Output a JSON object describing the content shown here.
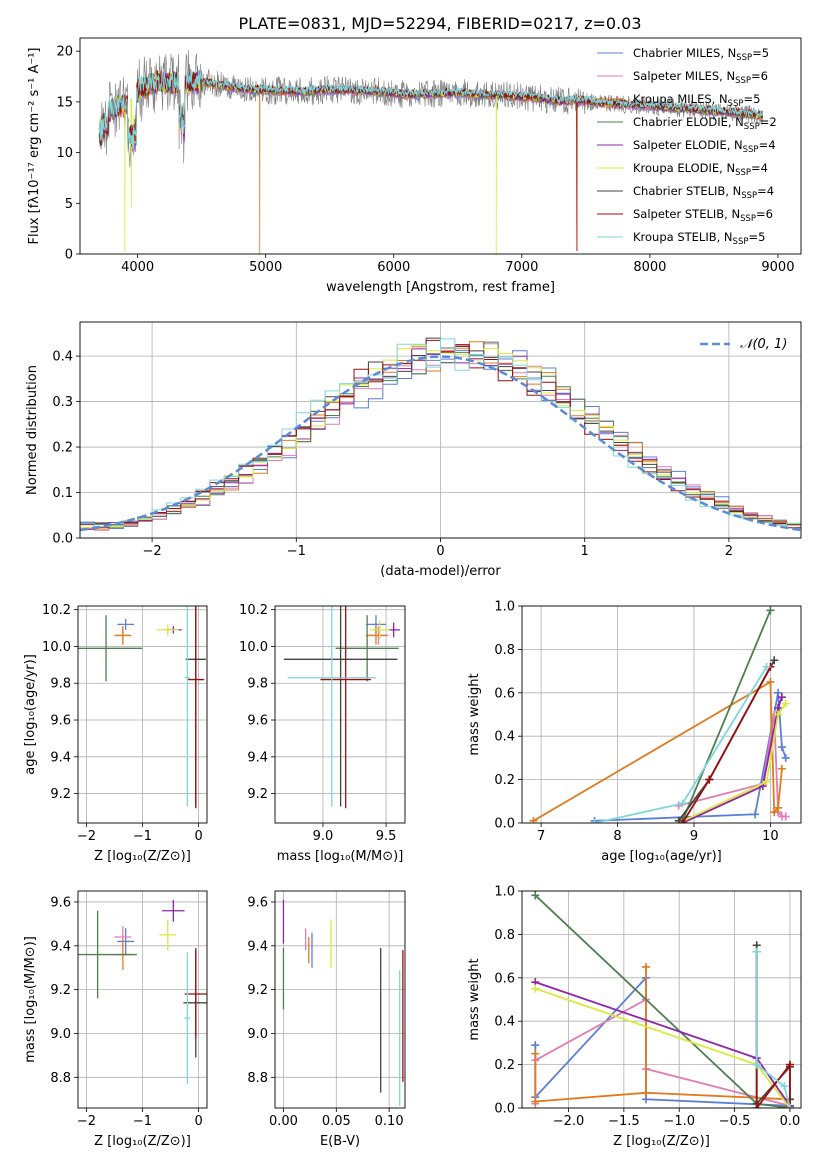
{
  "figure": {
    "title": "PLATE=0831, MJD=52294, FIBERID=0217, z=0.03"
  },
  "colors": {
    "Chabrier MILES": "#5b7fd6",
    "Salpeter MILES": "#e27cb4",
    "Kroupa MILES": "#e07b20",
    "Chabrier ELODIE": "#4f7f4f",
    "Salpeter ELODIE": "#8e24aa",
    "Kroupa ELODIE": "#d8ea3a",
    "Chabrier STELIB": "#444444",
    "Salpeter STELIB": "#9b0e0e",
    "Kroupa STELIB": "#7fd6dc"
  },
  "chart_data": [
    {
      "id": "spectrum",
      "type": "line",
      "title": "PLATE=0831, MJD=52294, FIBERID=0217, z=0.03",
      "xlabel": "wavelength [Angstrom, rest frame]",
      "ylabel": "Flux [fλ10⁻¹⁷ erg cm⁻² s⁻¹ A⁻¹]",
      "xlim": [
        3550,
        9180
      ],
      "ylim": [
        0,
        21.3
      ],
      "xticks": [
        4000,
        5000,
        6000,
        7000,
        8000,
        9000
      ],
      "yticks": [
        0,
        5,
        10,
        15,
        20
      ],
      "grid": false,
      "legend_position": "right",
      "legend": [
        {
          "label": "Chabrier MILES, N",
          "sub": "SSP",
          "tail": "=5",
          "color_key": "Chabrier MILES"
        },
        {
          "label": "Salpeter MILES, N",
          "sub": "SSP",
          "tail": "=6",
          "color_key": "Salpeter MILES"
        },
        {
          "label": "Kroupa MILES, N",
          "sub": "SSP",
          "tail": "=5",
          "color_key": "Kroupa MILES"
        },
        {
          "label": "Chabrier ELODIE, N",
          "sub": "SSP",
          "tail": "=2",
          "color_key": "Chabrier ELODIE"
        },
        {
          "label": "Salpeter ELODIE, N",
          "sub": "SSP",
          "tail": "=4",
          "color_key": "Salpeter ELODIE"
        },
        {
          "label": "Kroupa ELODIE, N",
          "sub": "SSP",
          "tail": "=4",
          "color_key": "Kroupa ELODIE"
        },
        {
          "label": "Chabrier STELIB, N",
          "sub": "SSP",
          "tail": "=4",
          "color_key": "Chabrier STELIB"
        },
        {
          "label": "Salpeter STELIB, N",
          "sub": "SSP",
          "tail": "=6",
          "color_key": "Salpeter STELIB"
        },
        {
          "label": "Kroupa STELIB, N",
          "sub": "SSP",
          "tail": "=5",
          "color_key": "Kroupa STELIB"
        }
      ],
      "continuum": {
        "wavelength": [
          3700,
          3800,
          3900,
          4000,
          4100,
          4200,
          4300,
          4400,
          4500,
          4700,
          4900,
          5100,
          5300,
          5500,
          5700,
          5900,
          6100,
          6300,
          6500,
          6700,
          6900,
          7100,
          7300,
          7500,
          7700,
          8000,
          8300,
          8600,
          8900
        ],
        "flux": [
          13.0,
          14.3,
          14.7,
          16.0,
          16.8,
          17.0,
          16.8,
          16.9,
          17.0,
          16.5,
          16.2,
          16.1,
          16.0,
          16.2,
          16.1,
          16.0,
          15.7,
          15.8,
          15.9,
          15.7,
          15.6,
          15.4,
          15.1,
          15.1,
          14.8,
          14.6,
          14.3,
          14.0,
          13.6
        ]
      },
      "features": [
        {
          "wavelength": 3900,
          "series": "Kroupa ELODIE",
          "depth_to": 0.2
        },
        {
          "wavelength": 3950,
          "series": "Kroupa ELODIE",
          "depth_to": 4.5
        },
        {
          "wavelength": 4953,
          "series": "Kroupa MILES",
          "depth_to": 0.0
        },
        {
          "wavelength": 6800,
          "series": "Kroupa ELODIE",
          "depth_to": 0.0
        },
        {
          "wavelength": 7430,
          "series": "Salpeter STELIB",
          "depth_to": 0.3
        },
        {
          "wavelength": 7430,
          "series": "Kroupa MILES",
          "depth_to": 0.3
        }
      ]
    },
    {
      "id": "residuals",
      "type": "histogram",
      "xlabel": "(data-model)/error",
      "ylabel": "Normed distribution",
      "xlim": [
        -2.5,
        2.5
      ],
      "ylim": [
        0,
        0.475
      ],
      "xticks": [
        -2,
        -1,
        0,
        1,
        2
      ],
      "yticks": [
        0.0,
        0.1,
        0.2,
        0.3,
        0.4
      ],
      "grid": true,
      "legend_position": "top-right",
      "reference_curve": {
        "label": "𝒩(0, 1)",
        "mean": 0,
        "sigma": 1
      },
      "bin_edges_start": -2.5,
      "bin_width": 0.1
    },
    {
      "id": "age_vs_Z",
      "type": "errorbar",
      "xlabel": "Z [log₁₀(Z/Z⊙)]",
      "ylabel": "age  [log₁₀(age/yr)]",
      "xlim": [
        -2.15,
        0.15
      ],
      "ylim": [
        9.04,
        10.22
      ],
      "xticks": [
        -2,
        -1,
        0
      ],
      "yticks": [
        9.2,
        9.4,
        9.6,
        9.8,
        10.0,
        10.2
      ],
      "grid": true,
      "points": [
        {
          "series": "Chabrier MILES",
          "x": -1.3,
          "xerr": 0.15,
          "y": 10.12,
          "yerr": 0.03
        },
        {
          "series": "Salpeter MILES",
          "x": -1.35,
          "xerr": 0.12,
          "y": 10.06,
          "yerr": 0.05
        },
        {
          "series": "Kroupa MILES",
          "x": -1.35,
          "xerr": 0.15,
          "y": 10.06,
          "yerr": 0.05
        },
        {
          "series": "Chabrier ELODIE",
          "x": -1.65,
          "xerr": 0.65,
          "y": 9.99,
          "yerr": 0.18
        },
        {
          "series": "Salpeter ELODIE",
          "x": -0.45,
          "xerr": 0.15,
          "y": 10.09,
          "yerr": 0.02
        },
        {
          "series": "Kroupa ELODIE",
          "x": -0.55,
          "xerr": 0.2,
          "y": 10.09,
          "yerr": 0.03
        },
        {
          "series": "Chabrier STELIB",
          "x": -0.05,
          "xerr": 0.18,
          "y": 9.93,
          "yerr": 0.8
        },
        {
          "series": "Salpeter STELIB",
          "x": -0.05,
          "xerr": 0.15,
          "y": 9.82,
          "yerr": 0.7
        },
        {
          "series": "Kroupa STELIB",
          "x": -0.2,
          "xerr": 0.05,
          "y": 9.83,
          "yerr": 0.7
        }
      ]
    },
    {
      "id": "age_vs_mass",
      "type": "errorbar",
      "xlabel": "mass [log₁₀(M/M⊙)]",
      "ylabel": "",
      "xlim": [
        8.62,
        9.65
      ],
      "ylim": [
        9.04,
        10.22
      ],
      "xticks": [
        9.0,
        9.5
      ],
      "yticks": [
        9.2,
        9.4,
        9.6,
        9.8,
        10.0,
        10.2
      ],
      "grid": true,
      "points": [
        {
          "series": "Chabrier MILES",
          "x": 9.42,
          "xerr": 0.08,
          "y": 10.12,
          "yerr": 0.05
        },
        {
          "series": "Salpeter MILES",
          "x": 9.44,
          "xerr": 0.08,
          "y": 10.06,
          "yerr": 0.05
        },
        {
          "series": "Kroupa MILES",
          "x": 9.42,
          "xerr": 0.08,
          "y": 10.06,
          "yerr": 0.05
        },
        {
          "series": "Chabrier ELODIE",
          "x": 9.35,
          "xerr": 0.25,
          "y": 9.99,
          "yerr": 0.18
        },
        {
          "series": "Salpeter ELODIE",
          "x": 9.56,
          "xerr": 0.05,
          "y": 10.09,
          "yerr": 0.04
        },
        {
          "series": "Kroupa ELODIE",
          "x": 9.45,
          "xerr": 0.08,
          "y": 10.09,
          "yerr": 0.05
        },
        {
          "series": "Chabrier STELIB",
          "x": 9.14,
          "xerr": 0.45,
          "y": 9.93,
          "yerr": 0.8
        },
        {
          "series": "Salpeter STELIB",
          "x": 9.18,
          "xerr": 0.2,
          "y": 9.82,
          "yerr": 0.7
        },
        {
          "series": "Kroupa STELIB",
          "x": 9.07,
          "xerr": 0.35,
          "y": 9.83,
          "yerr": 0.7
        }
      ]
    },
    {
      "id": "weight_vs_age",
      "type": "line",
      "xlabel": "age  [log₁₀(age/yr)]",
      "ylabel": "mass weight",
      "xlim": [
        6.75,
        10.4
      ],
      "ylim": [
        0,
        1
      ],
      "xticks": [
        7,
        8,
        9,
        10
      ],
      "yticks": [
        0.0,
        0.2,
        0.4,
        0.6,
        0.8,
        1.0
      ],
      "grid": true,
      "series": [
        {
          "series": "Chabrier MILES",
          "x": [
            7.7,
            9.8,
            10.1,
            10.15,
            10.2
          ],
          "y": [
            0.01,
            0.04,
            0.6,
            0.35,
            0.3
          ]
        },
        {
          "series": "Salpeter MILES",
          "x": [
            8.8,
            9.9,
            10.05,
            10.1,
            10.15,
            10.2
          ],
          "y": [
            0.08,
            0.18,
            0.5,
            0.05,
            0.03,
            0.03
          ]
        },
        {
          "series": "Kroupa MILES",
          "x": [
            6.9,
            10.0,
            10.05,
            10.1,
            10.15
          ],
          "y": [
            0.01,
            0.65,
            0.05,
            0.07,
            0.25
          ]
        },
        {
          "series": "Chabrier ELODIE",
          "x": [
            8.85,
            10.0
          ],
          "y": [
            0.01,
            0.98
          ]
        },
        {
          "series": "Salpeter ELODIE",
          "x": [
            8.85,
            9.9,
            10.1,
            10.15
          ],
          "y": [
            0.0,
            0.17,
            0.53,
            0.58
          ]
        },
        {
          "series": "Kroupa ELODIE",
          "x": [
            8.8,
            9.95,
            10.1,
            10.2
          ],
          "y": [
            0.0,
            0.19,
            0.5,
            0.55
          ]
        },
        {
          "series": "Chabrier STELIB",
          "x": [
            8.8,
            9.2,
            10.05
          ],
          "y": [
            0.01,
            0.2,
            0.75
          ]
        },
        {
          "series": "Salpeter STELIB",
          "x": [
            8.85,
            9.2,
            10.0
          ],
          "y": [
            0.0,
            0.2,
            0.72
          ]
        },
        {
          "series": "Kroupa STELIB",
          "x": [
            7.7,
            8.85,
            9.95
          ],
          "y": [
            0.0,
            0.09,
            0.72
          ]
        }
      ]
    },
    {
      "id": "mass_vs_Z",
      "type": "errorbar",
      "xlabel": "Z [log₁₀(Z/Z⊙)]",
      "ylabel": "mass [log₁₀(M/M⊙)]",
      "xlim": [
        -2.15,
        0.15
      ],
      "ylim": [
        8.66,
        9.65
      ],
      "xticks": [
        -2,
        -1,
        0
      ],
      "yticks": [
        8.8,
        9.0,
        9.2,
        9.4,
        9.6
      ],
      "grid": true,
      "points": [
        {
          "series": "Chabrier MILES",
          "x": -1.3,
          "xerr": 0.15,
          "y": 9.42,
          "yerr": 0.06
        },
        {
          "series": "Salpeter MILES",
          "x": -1.35,
          "xerr": 0.15,
          "y": 9.44,
          "yerr": 0.05
        },
        {
          "series": "Kroupa MILES",
          "x": -1.35,
          "xerr": 0.15,
          "y": 9.36,
          "yerr": 0.07
        },
        {
          "series": "Chabrier ELODIE",
          "x": -1.8,
          "xerr": 0.7,
          "y": 9.36,
          "yerr": 0.2
        },
        {
          "series": "Salpeter ELODIE",
          "x": -0.45,
          "xerr": 0.2,
          "y": 9.56,
          "yerr": 0.05
        },
        {
          "series": "Kroupa ELODIE",
          "x": -0.55,
          "xerr": 0.15,
          "y": 9.45,
          "yerr": 0.07
        },
        {
          "series": "Chabrier STELIB",
          "x": -0.05,
          "xerr": 0.22,
          "y": 9.14,
          "yerr": 0.25
        },
        {
          "series": "Salpeter STELIB",
          "x": -0.05,
          "xerr": 0.2,
          "y": 9.18,
          "yerr": 0.2
        },
        {
          "series": "Kroupa STELIB",
          "x": -0.2,
          "xerr": 0.05,
          "y": 9.07,
          "yerr": 0.3
        }
      ]
    },
    {
      "id": "mass_vs_ebv",
      "type": "errorbar",
      "xlabel": "E(B-V)",
      "ylabel": "",
      "xlim": [
        -0.008,
        0.115
      ],
      "ylim": [
        8.66,
        9.65
      ],
      "xticks": [
        0.0,
        0.05,
        0.1
      ],
      "yticks": [
        8.8,
        9.0,
        9.2,
        9.4,
        9.6
      ],
      "grid": true,
      "points": [
        {
          "series": "Chabrier MILES",
          "x": 0.027,
          "xerr": 0.0,
          "y": 9.38,
          "yerr": 0.08
        },
        {
          "series": "Salpeter MILES",
          "x": 0.021,
          "xerr": 0.0,
          "y": 9.43,
          "yerr": 0.05
        },
        {
          "series": "Kroupa MILES",
          "x": 0.024,
          "xerr": 0.0,
          "y": 9.38,
          "yerr": 0.06
        },
        {
          "series": "Chabrier ELODIE",
          "x": 0.0,
          "xerr": 0.0,
          "y": 9.25,
          "yerr": 0.14
        },
        {
          "series": "Salpeter ELODIE",
          "x": 0.0,
          "xerr": 0.0,
          "y": 9.51,
          "yerr": 0.1
        },
        {
          "series": "Kroupa ELODIE",
          "x": 0.045,
          "xerr": 0.0,
          "y": 9.41,
          "yerr": 0.11
        },
        {
          "series": "Chabrier STELIB",
          "x": 0.092,
          "xerr": 0.0,
          "y": 9.06,
          "yerr": 0.33
        },
        {
          "series": "Salpeter STELIB",
          "x": 0.113,
          "xerr": 0.0,
          "y": 9.08,
          "yerr": 0.3
        },
        {
          "series": "Kroupa STELIB",
          "x": 0.11,
          "xerr": 0.0,
          "y": 8.98,
          "yerr": 0.31
        }
      ]
    },
    {
      "id": "weight_vs_Z",
      "type": "line",
      "xlabel": "Z [log₁₀(Z/Z⊙)]",
      "ylabel": "mass weight",
      "xlim": [
        -2.42,
        0.1
      ],
      "ylim": [
        0,
        1
      ],
      "xticks": [
        -2.0,
        -1.5,
        -1.0,
        -0.5,
        0.0
      ],
      "yticks": [
        0.0,
        0.2,
        0.4,
        0.6,
        0.8,
        1.0
      ],
      "grid": true,
      "series": [
        {
          "series": "Chabrier MILES",
          "x": [
            -2.3,
            -2.3,
            -1.3,
            -1.3,
            0.0
          ],
          "y": [
            0.29,
            0.05,
            0.6,
            0.04,
            0.01
          ]
        },
        {
          "series": "Salpeter MILES",
          "x": [
            -2.3,
            -2.3,
            -1.3,
            -1.3,
            0.0
          ],
          "y": [
            0.02,
            0.22,
            0.5,
            0.18,
            0.01
          ]
        },
        {
          "series": "Kroupa MILES",
          "x": [
            -2.3,
            -2.3,
            -1.3,
            -1.3,
            -1.3,
            0.0
          ],
          "y": [
            0.25,
            0.03,
            0.07,
            0.65,
            0.07,
            0.04
          ]
        },
        {
          "series": "Chabrier ELODIE",
          "x": [
            -2.3,
            -0.3,
            -0.3,
            0.0
          ],
          "y": [
            0.98,
            0.02,
            0.02,
            0.0
          ]
        },
        {
          "series": "Salpeter ELODIE",
          "x": [
            -2.3,
            -0.3,
            0.0
          ],
          "y": [
            0.58,
            0.23,
            0.01
          ]
        },
        {
          "series": "Kroupa ELODIE",
          "x": [
            -2.3,
            -0.3,
            0.0
          ],
          "y": [
            0.55,
            0.2,
            0.0
          ]
        },
        {
          "series": "Chabrier STELIB",
          "x": [
            -0.3,
            -0.3,
            0.0,
            0.0
          ],
          "y": [
            0.75,
            0.02,
            0.19,
            0.04
          ]
        },
        {
          "series": "Salpeter STELIB",
          "x": [
            -0.3,
            -0.3,
            0.0,
            0.0
          ],
          "y": [
            0.72,
            0.0,
            0.2,
            0.0
          ]
        },
        {
          "series": "Kroupa STELIB",
          "x": [
            -0.3,
            -0.3,
            -0.05,
            0.0
          ],
          "y": [
            0.72,
            0.2,
            0.1,
            0.0
          ]
        }
      ]
    }
  ]
}
